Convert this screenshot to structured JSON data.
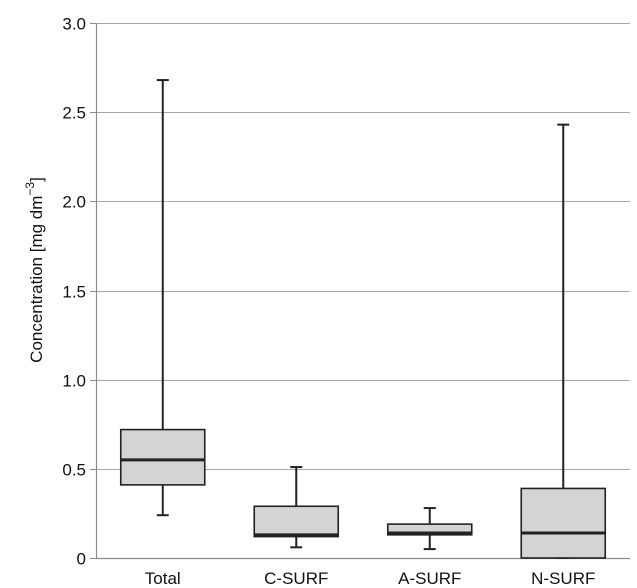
{
  "chart_data": {
    "type": "boxplot",
    "title": "",
    "xlabel": "",
    "ylabel": "Concentration  [mg dm",
    "ylabel_superscript": "−3",
    "ylabel_suffix": "]",
    "ylim": [
      0,
      3.0
    ],
    "yticks": [
      {
        "value": 0,
        "label": "0"
      },
      {
        "value": 0.5,
        "label": "0.5"
      },
      {
        "value": 1.0,
        "label": "1.0"
      },
      {
        "value": 1.5,
        "label": "1.5"
      },
      {
        "value": 2.0,
        "label": "2.0"
      },
      {
        "value": 2.5,
        "label": "2.5"
      },
      {
        "value": 3.0,
        "label": "3.0"
      }
    ],
    "grid": true,
    "categories": [
      "Total",
      "C-SURF",
      "A-SURF",
      "N-SURF"
    ],
    "boxes": [
      {
        "category": "Total",
        "min": 0.24,
        "q1": 0.41,
        "median": 0.55,
        "q3": 0.72,
        "max": 2.68
      },
      {
        "category": "C-SURF",
        "min": 0.06,
        "q1": 0.12,
        "median": 0.13,
        "q3": 0.29,
        "max": 0.51
      },
      {
        "category": "A-SURF",
        "min": 0.05,
        "q1": 0.13,
        "median": 0.14,
        "q3": 0.19,
        "max": 0.28
      },
      {
        "category": "N-SURF",
        "min": 0.0,
        "q1": 0.0,
        "median": 0.14,
        "q3": 0.39,
        "max": 2.43
      }
    ],
    "colors": {
      "box_fill": "#d4d4d4",
      "stroke": "#222222",
      "grid": "#a8a8a8",
      "axis": "#8c8c8c"
    }
  }
}
